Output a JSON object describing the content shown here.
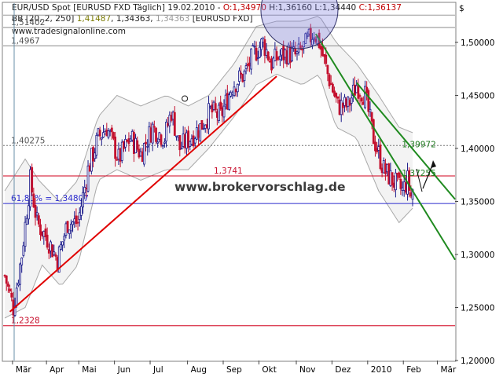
{
  "header": {
    "line1_prefix": "EUR/USD Spot [EURUSD FXD  Täglich] 19.02.2010 - ",
    "open_label": "O:1,34970",
    "high_label": " H:1,36160",
    "low_label": " L:1,34440",
    "close_label": " C:1,36137",
    "url": "www.tradesignalonline.com",
    "bb_prefix": "BB [20, 2, 250] ",
    "bb_v1": "1,41487",
    "bb_v2": "1,34363",
    "bb_v3": "1,34363",
    "bb_suffix": " [EURUSD FXD]"
  },
  "currency_symbol": "$",
  "watermark": "www.brokervorschlag.de",
  "colors": {
    "up": "#1a1a8a",
    "down": "#c4112e",
    "band_fill": "#f3f3f3",
    "red_line": "#e00000",
    "green_line": "#1f8a1f",
    "blue_line": "#2a2acd"
  },
  "chart_data": {
    "type": "candlestick",
    "ylim": [
      1.2,
      1.537
    ],
    "y_ticks": [
      "1,50000",
      "1,45000",
      "1,40000",
      "1,35000",
      "1,30000",
      "1,25000",
      "1,20000"
    ],
    "y_tick_values": [
      1.5,
      1.45,
      1.4,
      1.35,
      1.3,
      1.25,
      1.2
    ],
    "x_months": [
      {
        "label": "Mär",
        "index": 5
      },
      {
        "label": "Apr",
        "index": 25
      },
      {
        "label": "Mai",
        "index": 44
      },
      {
        "label": "Jun",
        "index": 65
      },
      {
        "label": "Jul",
        "index": 86
      },
      {
        "label": "Aug",
        "index": 108
      },
      {
        "label": "Sep",
        "index": 129
      },
      {
        "label": "Okt",
        "index": 150
      },
      {
        "label": "Nov",
        "index": 172
      },
      {
        "label": "Dez",
        "index": 193
      },
      {
        "label": "2010",
        "index": 214
      },
      {
        "label": "Feb",
        "index": 235
      },
      {
        "label": "Mär",
        "index": 255
      }
    ],
    "num_bars": 265,
    "anchors": [
      [
        0,
        1.28
      ],
      [
        5,
        1.25
      ],
      [
        10,
        1.3
      ],
      [
        15,
        1.37
      ],
      [
        19,
        1.33
      ],
      [
        25,
        1.315
      ],
      [
        31,
        1.295
      ],
      [
        37,
        1.33
      ],
      [
        43,
        1.33
      ],
      [
        49,
        1.38
      ],
      [
        55,
        1.41
      ],
      [
        60,
        1.42
      ],
      [
        67,
        1.39
      ],
      [
        74,
        1.41
      ],
      [
        80,
        1.395
      ],
      [
        87,
        1.42
      ],
      [
        94,
        1.41
      ],
      [
        98,
        1.435
      ],
      [
        103,
        1.4
      ],
      [
        109,
        1.41
      ],
      [
        115,
        1.42
      ],
      [
        121,
        1.435
      ],
      [
        127,
        1.43
      ],
      [
        134,
        1.46
      ],
      [
        141,
        1.47
      ],
      [
        147,
        1.49
      ],
      [
        152,
        1.5
      ],
      [
        157,
        1.48
      ],
      [
        160,
        1.485
      ],
      [
        166,
        1.49
      ],
      [
        172,
        1.487
      ],
      [
        178,
        1.5
      ],
      [
        182,
        1.51
      ],
      [
        185,
        1.5
      ],
      [
        190,
        1.47
      ],
      [
        196,
        1.44
      ],
      [
        202,
        1.44
      ],
      [
        207,
        1.46
      ],
      [
        212,
        1.45
      ],
      [
        217,
        1.41
      ],
      [
        223,
        1.38
      ],
      [
        228,
        1.37
      ],
      [
        234,
        1.36
      ],
      [
        237,
        1.37
      ],
      [
        239,
        1.355
      ],
      [
        240,
        1.36137
      ]
    ],
    "bb_upper": [
      [
        0,
        1.36
      ],
      [
        12,
        1.39
      ],
      [
        20,
        1.37
      ],
      [
        32,
        1.35
      ],
      [
        43,
        1.37
      ],
      [
        55,
        1.43
      ],
      [
        66,
        1.45
      ],
      [
        80,
        1.44
      ],
      [
        95,
        1.45
      ],
      [
        108,
        1.44
      ],
      [
        120,
        1.45
      ],
      [
        135,
        1.48
      ],
      [
        148,
        1.515
      ],
      [
        160,
        1.52
      ],
      [
        175,
        1.52
      ],
      [
        185,
        1.525
      ],
      [
        195,
        1.5
      ],
      [
        207,
        1.48
      ],
      [
        220,
        1.45
      ],
      [
        232,
        1.42
      ],
      [
        240,
        1.41487
      ]
    ],
    "bb_lower": [
      [
        0,
        1.24
      ],
      [
        12,
        1.25
      ],
      [
        22,
        1.29
      ],
      [
        33,
        1.27
      ],
      [
        43,
        1.29
      ],
      [
        55,
        1.37
      ],
      [
        66,
        1.38
      ],
      [
        80,
        1.37
      ],
      [
        95,
        1.38
      ],
      [
        108,
        1.38
      ],
      [
        120,
        1.4
      ],
      [
        135,
        1.43
      ],
      [
        148,
        1.46
      ],
      [
        160,
        1.47
      ],
      [
        175,
        1.46
      ],
      [
        185,
        1.47
      ],
      [
        195,
        1.42
      ],
      [
        207,
        1.41
      ],
      [
        220,
        1.36
      ],
      [
        232,
        1.33
      ],
      [
        240,
        1.34363
      ]
    ],
    "levels": [
      {
        "label": "1,51402",
        "value": 1.51402,
        "color": "#555555",
        "style": "gray"
      },
      {
        "label": "1,4967",
        "value": 1.4967,
        "color": "#555555",
        "style": "gray"
      },
      {
        "label": "1,40275",
        "value": 1.40275,
        "color": "#555555",
        "style": "dash"
      },
      {
        "label": "1,3741",
        "value": 1.3741,
        "color": "#c8102e",
        "style": "red"
      },
      {
        "label": "61,80% = 1,34807",
        "value": 1.34807,
        "color": "#2a2acd",
        "style": "blue"
      },
      {
        "label": "1,2328",
        "value": 1.2328,
        "color": "#c8102e",
        "style": "red"
      }
    ],
    "top_level": {
      "value": 1.5257,
      "style": "gray"
    },
    "red_trendline": [
      [
        3,
        1.246
      ],
      [
        160,
        1.468
      ]
    ],
    "green_lines": [
      [
        [
          183,
          1.508
        ],
        [
          265,
          1.295
        ]
      ],
      [
        [
          207,
          1.462
        ],
        [
          265,
          1.352
        ]
      ]
    ],
    "annotations": [
      {
        "label": "1,39972",
        "value": 1.39972,
        "x_index": 236,
        "color": "#1f7a1f"
      },
      {
        "label": "1,37255",
        "value": 1.37255,
        "x_index": 236,
        "color": "#1f7a1f"
      }
    ],
    "circle_markers": [
      [
        105,
        1.447
      ]
    ],
    "highlight_circle": {
      "x_index": 178,
      "value": 1.52
    }
  }
}
